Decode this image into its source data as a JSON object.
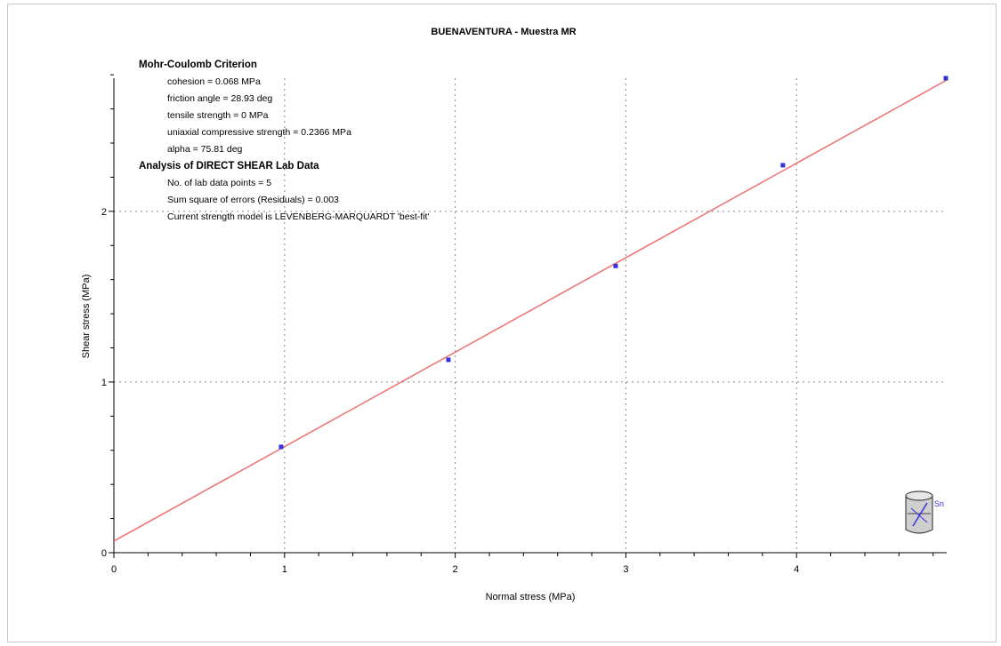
{
  "colors": {
    "fit_line": "#ee7070",
    "points": "#3333dd",
    "grid": "#888888",
    "axis": "#000000"
  },
  "chart_data": {
    "type": "scatter",
    "title": "BUENAVENTURA - Muestra MR",
    "xlabel": "Normal stress (MPa)",
    "ylabel": "Shear stress (MPa)",
    "xlim": [
      0,
      4.88
    ],
    "ylim": [
      0,
      2.78
    ],
    "xticks": [
      0,
      1,
      2,
      3,
      4
    ],
    "yticks": [
      0,
      1,
      2
    ],
    "grid": true,
    "legend": "none",
    "series": [
      {
        "values": [
          {
            "x": 0.98,
            "y": 0.62
          },
          {
            "x": 1.96,
            "y": 1.13
          },
          {
            "x": 2.94,
            "y": 1.68
          },
          {
            "x": 3.92,
            "y": 2.27
          },
          {
            "x": 4.9,
            "y": 2.78
          }
        ]
      }
    ],
    "fit_line": {
      "x": [
        0,
        4.9
      ],
      "y": [
        0.068,
        2.78
      ]
    },
    "annotations": [
      {
        "bold": true,
        "indent": false,
        "text": "Mohr-Coulomb Criterion"
      },
      {
        "bold": false,
        "indent": true,
        "text": "cohesion = 0.068 MPa"
      },
      {
        "bold": false,
        "indent": true,
        "text": "friction angle = 28.93 deg"
      },
      {
        "bold": false,
        "indent": true,
        "text": "tensile strength = 0 MPa"
      },
      {
        "bold": false,
        "indent": true,
        "text": "uniaxial compressive strength = 0.2366 MPa"
      },
      {
        "bold": false,
        "indent": true,
        "text": "alpha = 75.81 deg"
      },
      {
        "bold": true,
        "indent": false,
        "text": "Analysis of DIRECT SHEAR Lab Data"
      },
      {
        "bold": false,
        "indent": true,
        "text": "No. of lab data points = 5"
      },
      {
        "bold": false,
        "indent": true,
        "text": "Sum square of errors (Residuals) = 0.003"
      },
      {
        "bold": false,
        "indent": true,
        "text": "Current strength model is LEVENBERG-MARQUARDT 'best-fit'"
      }
    ],
    "icon": "direct-shear-sample-icon",
    "icon_label": "Sn"
  }
}
